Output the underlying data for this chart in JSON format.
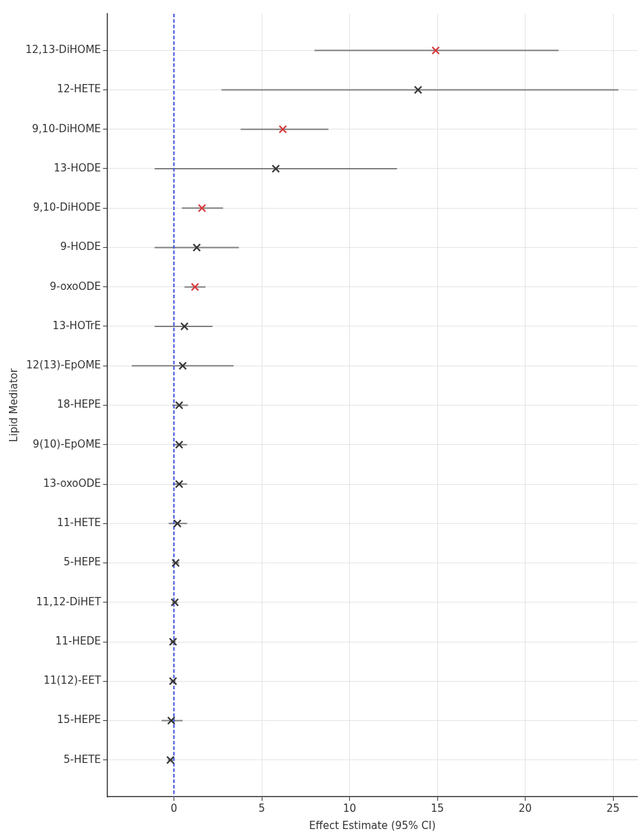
{
  "chart_data": {
    "type": "scatter",
    "orientation": "horizontal",
    "xlabel": "Effect Estimate (95% CI)",
    "ylabel": "Lipid Mediator",
    "categories": [
      "12,13-DiHOME",
      "12-HETE",
      "9,10-DiHOME",
      "13-HODE",
      "9,10-DiHODE",
      "9-HODE",
      "9-oxoODE",
      "13-HOTrE",
      "12(13)-EpOME",
      "18-HEPE",
      "9(10)-EpOME",
      "13-oxoODE",
      "11-HETE",
      "5-HEPE",
      "11,12-DiHET",
      "11-HEDE",
      "11(12)-EET",
      "15-HEPE",
      "5-HETE"
    ],
    "series": [
      {
        "colors": [
          "#d9383a",
          "#333333",
          "#d9383a",
          "#333333",
          "#d9383a",
          "#333333",
          "#d9383a",
          "#333333",
          "#333333",
          "#333333",
          "#333333",
          "#333333",
          "#333333",
          "#333333",
          "#333333",
          "#333333",
          "#333333",
          "#333333",
          "#333333"
        ],
        "values": [
          14.9,
          13.9,
          6.2,
          5.8,
          1.6,
          1.3,
          1.2,
          0.6,
          0.5,
          0.3,
          0.3,
          0.3,
          0.2,
          0.1,
          0.05,
          -0.05,
          -0.05,
          -0.15,
          -0.2
        ],
        "errors": [
          [
            8.0,
            21.9
          ],
          [
            2.7,
            25.3
          ],
          [
            3.8,
            8.8
          ],
          [
            -1.1,
            12.7
          ],
          [
            0.45,
            2.8
          ],
          [
            -1.1,
            3.7
          ],
          [
            0.6,
            1.8
          ],
          [
            -1.1,
            2.2
          ],
          [
            -2.4,
            3.4
          ],
          [
            -0.1,
            0.8
          ],
          [
            -0.05,
            0.75
          ],
          [
            -0.05,
            0.75
          ],
          [
            -0.3,
            0.75
          ],
          [
            -0.1,
            0.3
          ],
          [
            -0.1,
            0.2
          ],
          [
            -0.2,
            0.1
          ],
          [
            -0.2,
            0.1
          ],
          [
            -0.7,
            0.5
          ],
          [
            -0.35,
            0
          ]
        ]
      }
    ],
    "xlim": [
      -3.8,
      26.4
    ],
    "xticks": [
      0,
      5,
      10,
      15,
      20,
      25
    ],
    "grid": true,
    "marker": "cross",
    "ref_lines": [
      {
        "axis": "x",
        "value": 0,
        "color": "#3b4fe0",
        "line_style": "dashed"
      }
    ]
  }
}
